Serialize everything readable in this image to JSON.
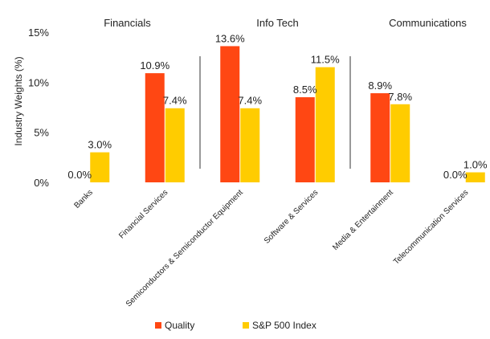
{
  "chart_data": {
    "type": "bar",
    "categories": [
      "Banks",
      "Financial Services",
      "Semiconductors & Semiconductor Equipment",
      "Software & Services",
      "Media & Entertainment",
      "Telecommunication Services"
    ],
    "series": [
      {
        "name": "Quality",
        "values": [
          0.0,
          10.9,
          13.6,
          8.5,
          8.9,
          0.0
        ],
        "labels": [
          "0.0%",
          "10.9%",
          "13.6%",
          "8.5%",
          "8.9%",
          "0.0%"
        ],
        "color": "#FF4713"
      },
      {
        "name": "S&P 500 Index",
        "values": [
          3.0,
          7.4,
          7.4,
          11.5,
          7.8,
          1.0
        ],
        "labels": [
          "3.0%",
          "7.4%",
          "7.4%",
          "11.5%",
          "7.8%",
          "1.0%"
        ],
        "color": "#FFCC00"
      }
    ],
    "groups": [
      "Financials",
      "Info Tech",
      "Communications"
    ],
    "ylabel": "Industry Weights (%)",
    "ylim": [
      0,
      15
    ],
    "yticks": [
      0,
      5,
      10,
      15
    ],
    "ytick_labels": [
      "0%",
      "5%",
      "10%",
      "15%"
    ],
    "grid": false,
    "legend": "bottom"
  }
}
